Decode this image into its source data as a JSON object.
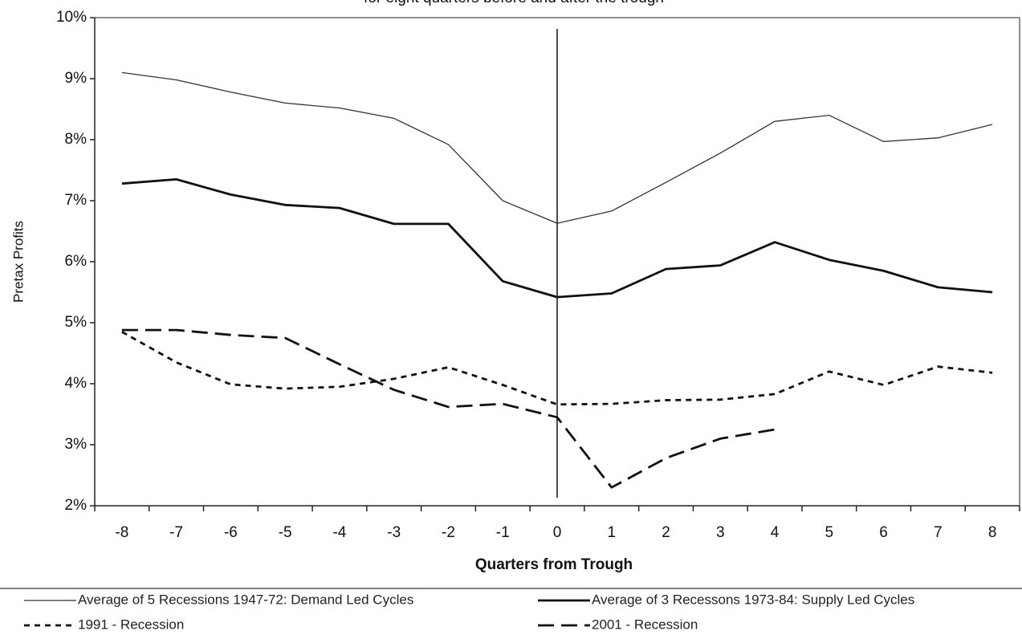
{
  "chart_data": {
    "type": "line",
    "subtitle": "for eight quarters before and after the trough",
    "y_label": "Pretax Profits",
    "x_label": "Quarters from Trough",
    "categories": [
      "-8",
      "-7",
      "-6",
      "-5",
      "-4",
      "-3",
      "-2",
      "-1",
      "0",
      "1",
      "2",
      "3",
      "4",
      "5",
      "6",
      "7",
      "8"
    ],
    "reference_line": "0",
    "ylim": [
      2,
      10
    ],
    "yticks": [
      {
        "value": 2,
        "label": "2%"
      },
      {
        "value": 3,
        "label": "3%"
      },
      {
        "value": 4,
        "label": "4%"
      },
      {
        "value": 5,
        "label": "5%"
      },
      {
        "value": 6,
        "label": "6%"
      },
      {
        "value": 7,
        "label": "7%"
      },
      {
        "value": 8,
        "label": "8%"
      },
      {
        "value": 9,
        "label": "9%"
      },
      {
        "value": 10,
        "label": "10%"
      }
    ],
    "legend": "bottom",
    "series": [
      {
        "name": "Average of 5 Recessions 1947-72: Demand Led Cycles",
        "color": "#333333",
        "line_style": "solid",
        "line_width": "thin",
        "values": [
          9.1,
          8.98,
          8.78,
          8.6,
          8.52,
          8.35,
          7.92,
          7.0,
          6.63,
          6.83,
          7.3,
          7.78,
          8.3,
          8.4,
          7.97,
          8.03,
          8.25
        ]
      },
      {
        "name": "Average of 3 Recessons 1973-84: Supply Led Cycles",
        "color": "#111111",
        "line_style": "solid",
        "line_width": "thick",
        "values": [
          7.28,
          7.35,
          7.1,
          6.93,
          6.88,
          6.62,
          6.62,
          5.68,
          5.42,
          5.48,
          5.88,
          5.94,
          6.32,
          6.03,
          5.85,
          5.58,
          5.5
        ]
      },
      {
        "name": "1991 - Recession",
        "color": "#111111",
        "line_style": "short-dash",
        "line_width": "thick",
        "values": [
          4.85,
          4.35,
          3.99,
          3.92,
          3.95,
          4.08,
          4.27,
          3.98,
          3.66,
          3.67,
          3.73,
          3.74,
          3.83,
          4.2,
          3.98,
          4.28,
          4.18
        ]
      },
      {
        "name": "2001 - Recession",
        "color": "#111111",
        "line_style": "long-dash",
        "line_width": "thick",
        "values": [
          4.88,
          4.88,
          4.8,
          4.75,
          4.32,
          3.9,
          3.62,
          3.67,
          3.45,
          2.3,
          2.78,
          3.1,
          3.25,
          null,
          null,
          null,
          null
        ]
      }
    ]
  }
}
